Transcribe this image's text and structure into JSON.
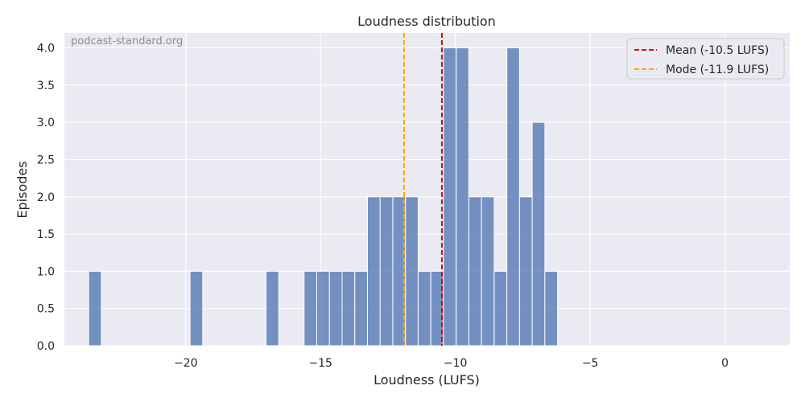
{
  "watermark": "podcast-standard.org",
  "chart_data": {
    "type": "bar",
    "title": "Loudness distribution",
    "xlabel": "Loudness (LUFS)",
    "ylabel": "Episodes",
    "xlim": [
      -24.5,
      2.4
    ],
    "ylim": [
      0,
      4.2
    ],
    "xticks": [
      -20,
      -15,
      -10,
      -5,
      0
    ],
    "xtick_labels": [
      "−20",
      "−15",
      "−10",
      "−5",
      "0"
    ],
    "yticks": [
      0,
      0.5,
      1,
      1.5,
      2,
      2.5,
      3,
      3.5,
      4
    ],
    "ytick_labels": [
      "0.0",
      "0.5",
      "1.0",
      "1.5",
      "2.0",
      "2.5",
      "3.0",
      "3.5",
      "4.0"
    ],
    "grid": true,
    "bar_color": "#4c72b0",
    "bins": [
      {
        "x0": -23.6,
        "x1": -23.13,
        "value": 1
      },
      {
        "x0": -19.84,
        "x1": -19.37,
        "value": 1
      },
      {
        "x0": -17.02,
        "x1": -16.55,
        "value": 1
      },
      {
        "x0": -15.61,
        "x1": -15.14,
        "value": 1
      },
      {
        "x0": -15.14,
        "x1": -14.67,
        "value": 1
      },
      {
        "x0": -14.67,
        "x1": -14.2,
        "value": 1
      },
      {
        "x0": -14.2,
        "x1": -13.73,
        "value": 1
      },
      {
        "x0": -13.73,
        "x1": -13.26,
        "value": 1
      },
      {
        "x0": -13.26,
        "x1": -12.79,
        "value": 2
      },
      {
        "x0": -12.79,
        "x1": -12.32,
        "value": 2
      },
      {
        "x0": -12.32,
        "x1": -11.85,
        "value": 2
      },
      {
        "x0": -11.85,
        "x1": -11.38,
        "value": 2
      },
      {
        "x0": -11.38,
        "x1": -10.91,
        "value": 1
      },
      {
        "x0": -10.91,
        "x1": -10.44,
        "value": 1
      },
      {
        "x0": -10.44,
        "x1": -9.97,
        "value": 4
      },
      {
        "x0": -9.97,
        "x1": -9.5,
        "value": 4
      },
      {
        "x0": -9.5,
        "x1": -9.03,
        "value": 2
      },
      {
        "x0": -9.03,
        "x1": -8.56,
        "value": 2
      },
      {
        "x0": -8.56,
        "x1": -8.09,
        "value": 1
      },
      {
        "x0": -8.09,
        "x1": -7.62,
        "value": 4
      },
      {
        "x0": -7.62,
        "x1": -7.15,
        "value": 2
      },
      {
        "x0": -7.15,
        "x1": -6.68,
        "value": 3
      },
      {
        "x0": -6.68,
        "x1": -6.21,
        "value": 1
      }
    ],
    "vlines": [
      {
        "name": "Mean (-10.5 LUFS)",
        "x": -10.5,
        "color": "#e00000",
        "style": "dashed"
      },
      {
        "name": "Mode (-11.9 LUFS)",
        "x": -11.9,
        "color": "#ffa500",
        "style": "dashed"
      }
    ],
    "legend_position": "top-right"
  }
}
